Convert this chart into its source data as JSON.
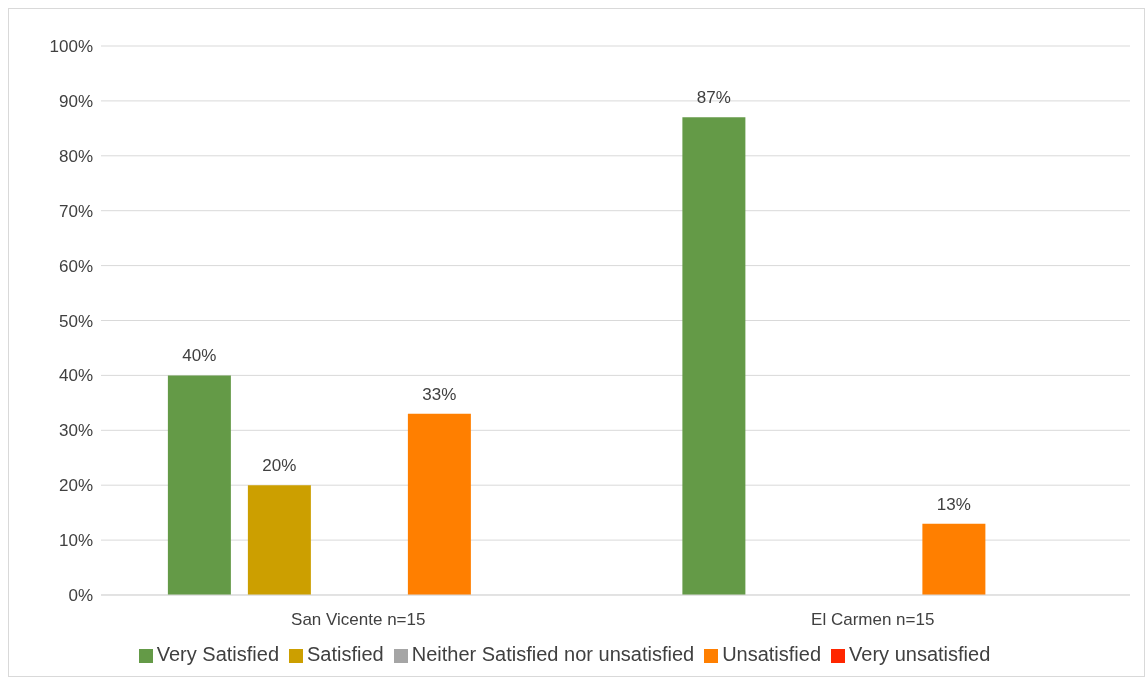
{
  "chart_data": {
    "type": "bar",
    "categories": [
      "San Vicente n=15",
      "El Carmen n=15"
    ],
    "series": [
      {
        "name": "Very Satisfied",
        "color": "#649a47",
        "values": [
          40,
          87
        ],
        "value_labels": [
          "40%",
          "87%"
        ]
      },
      {
        "name": "Satisfied",
        "color": "#cc9f00",
        "values": [
          20,
          0
        ],
        "value_labels": [
          "20%",
          null
        ]
      },
      {
        "name": "Neither Satisfied nor unsatisfied",
        "color": "#a5a5a5",
        "values": [
          0,
          0
        ],
        "value_labels": [
          null,
          null
        ]
      },
      {
        "name": "Unsatisfied",
        "color": "#ff7f00",
        "values": [
          33,
          13
        ],
        "value_labels": [
          "33%",
          "13%"
        ]
      },
      {
        "name": "Very unsatisfied",
        "color": "#ff2600",
        "values": [
          0,
          0
        ],
        "value_labels": [
          null,
          null
        ]
      }
    ],
    "ylim": [
      0,
      100
    ],
    "yticks": [
      {
        "value": 0,
        "label": "0%"
      },
      {
        "value": 10,
        "label": "10%"
      },
      {
        "value": 20,
        "label": "20%"
      },
      {
        "value": 30,
        "label": "30%"
      },
      {
        "value": 40,
        "label": "40%"
      },
      {
        "value": 50,
        "label": "50%"
      },
      {
        "value": 60,
        "label": "60%"
      },
      {
        "value": 70,
        "label": "70%"
      },
      {
        "value": 80,
        "label": "80%"
      },
      {
        "value": 90,
        "label": "90%"
      },
      {
        "value": 100,
        "label": "100%"
      }
    ],
    "grid": "y",
    "legend": "bottom"
  }
}
